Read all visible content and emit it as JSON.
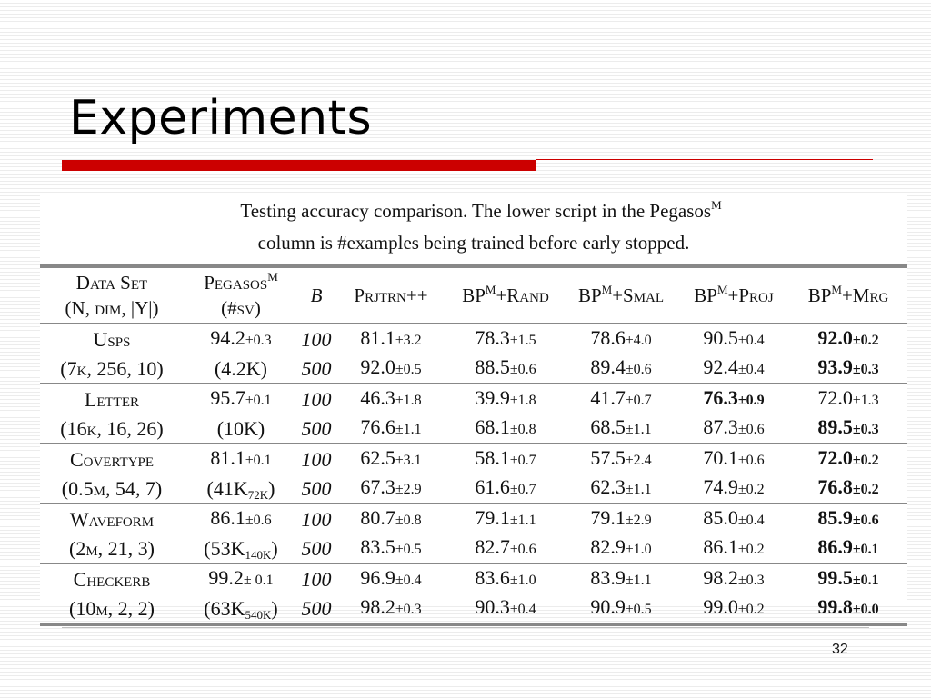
{
  "slide": {
    "title": "Experiments",
    "page_number": "32"
  },
  "caption": {
    "line1_pre": "Testing accuracy comparison. The lower script in the Pegasos",
    "line1_sup": "M",
    "line2": "column is #examples being trained before early stopped."
  },
  "headers": {
    "dataset_line1": "Data Set",
    "dataset_line2": "(N, dim, |Y|)",
    "pegasos_line1": "Pegasos",
    "pegasos_sup": "M",
    "pegasos_line2": "(#sv)",
    "b": "B",
    "prjtrn": "Prjtrn++",
    "bp_rand_pre": "BP",
    "bp_rand_sup": "M",
    "bp_rand_post": "+Rand",
    "bp_smal_pre": "BP",
    "bp_smal_sup": "M",
    "bp_smal_post": "+Smal",
    "bp_proj_pre": "BP",
    "bp_proj_sup": "M",
    "bp_proj_post": "+Proj",
    "bp_mrg_pre": "BP",
    "bp_mrg_sup": "M",
    "bp_mrg_post": "+Mrg"
  },
  "groups": [
    {
      "name": "Usps",
      "meta_pre": "(7",
      "meta_k": "k",
      "meta_post": ", 256, 10)",
      "pegasos_acc": "94.2",
      "pegasos_pm": "±0.3",
      "pegasos_sv": "(4.2K)",
      "pegasos_sv_sub": "",
      "pegasos_sv_close": "",
      "rows": [
        {
          "b": "100",
          "prjtrn": "81.1",
          "prjtrn_pm": "±3.2",
          "rand": "78.3",
          "rand_pm": "±1.5",
          "smal": "78.6",
          "smal_pm": "±4.0",
          "proj": "90.5",
          "proj_pm": "±0.4",
          "mrg": "92.0",
          "mrg_pm": "±0.2"
        },
        {
          "b": "500",
          "prjtrn": "92.0",
          "prjtrn_pm": "±0.5",
          "rand": "88.5",
          "rand_pm": "±0.6",
          "smal": "89.4",
          "smal_pm": "±0.6",
          "proj": "92.4",
          "proj_pm": "±0.4",
          "mrg": "93.9",
          "mrg_pm": "±0.3"
        }
      ]
    },
    {
      "name": "Letter",
      "meta_pre": "(16",
      "meta_k": "k",
      "meta_post": ", 16, 26)",
      "pegasos_acc": "95.7",
      "pegasos_pm": "±0.1",
      "pegasos_sv": "(10K)",
      "pegasos_sv_sub": "",
      "pegasos_sv_close": "",
      "rows": [
        {
          "b": "100",
          "prjtrn": "46.3",
          "prjtrn_pm": "±1.8",
          "rand": "39.9",
          "rand_pm": "±1.8",
          "smal": "41.7",
          "smal_pm": "±0.7",
          "proj": "76.3",
          "proj_pm": "±0.9",
          "mrg": "72.0",
          "mrg_pm": "±1.3"
        },
        {
          "b": "500",
          "prjtrn": "76.6",
          "prjtrn_pm": "±1.1",
          "rand": "68.1",
          "rand_pm": "±0.8",
          "smal": "68.5",
          "smal_pm": "±1.1",
          "proj": "87.3",
          "proj_pm": "±0.6",
          "mrg": "89.5",
          "mrg_pm": "±0.3"
        }
      ]
    },
    {
      "name": "Covertype",
      "meta_pre": "(0.5",
      "meta_k": "m",
      "meta_post": ", 54, 7)",
      "pegasos_acc": "81.1",
      "pegasos_pm": "±0.1",
      "pegasos_sv": "(41K",
      "pegasos_sv_sub": "72K",
      "pegasos_sv_close": ")",
      "rows": [
        {
          "b": "100",
          "prjtrn": "62.5",
          "prjtrn_pm": "±3.1",
          "rand": "58.1",
          "rand_pm": "±0.7",
          "smal": "57.5",
          "smal_pm": "±2.4",
          "proj": "70.1",
          "proj_pm": "±0.6",
          "mrg": "72.0",
          "mrg_pm": "±0.2"
        },
        {
          "b": "500",
          "prjtrn": "67.3",
          "prjtrn_pm": "±2.9",
          "rand": "61.6",
          "rand_pm": "±0.7",
          "smal": "62.3",
          "smal_pm": "±1.1",
          "proj": "74.9",
          "proj_pm": "±0.2",
          "mrg": "76.8",
          "mrg_pm": "±0.2"
        }
      ]
    },
    {
      "name": "Waveform",
      "meta_pre": "(2",
      "meta_k": "m",
      "meta_post": ", 21, 3)",
      "pegasos_acc": "86.1",
      "pegasos_pm": "±0.6",
      "pegasos_sv": "(53K",
      "pegasos_sv_sub": "140K",
      "pegasos_sv_close": ")",
      "rows": [
        {
          "b": "100",
          "prjtrn": "80.7",
          "prjtrn_pm": "±0.8",
          "rand": "79.1",
          "rand_pm": "±1.1",
          "smal": "79.1",
          "smal_pm": "±2.9",
          "proj": "85.0",
          "proj_pm": "±0.4",
          "mrg": "85.9",
          "mrg_pm": "±0.6"
        },
        {
          "b": "500",
          "prjtrn": "83.5",
          "prjtrn_pm": "±0.5",
          "rand": "82.7",
          "rand_pm": "±0.6",
          "smal": "82.9",
          "smal_pm": "±1.0",
          "proj": "86.1",
          "proj_pm": "±0.2",
          "mrg": "86.9",
          "mrg_pm": "±0.1"
        }
      ]
    },
    {
      "name": "Checkerb",
      "meta_pre": "(10",
      "meta_k": "m",
      "meta_post": ", 2, 2)",
      "pegasos_acc": "99.2",
      "pegasos_pm": "± 0.1",
      "pegasos_sv": "(63K",
      "pegasos_sv_sub": "540K",
      "pegasos_sv_close": ")",
      "rows": [
        {
          "b": "100",
          "prjtrn": "96.9",
          "prjtrn_pm": "±0.4",
          "rand": "83.6",
          "rand_pm": "±1.0",
          "smal": "83.9",
          "smal_pm": "±1.1",
          "proj": "98.2",
          "proj_pm": "±0.3",
          "mrg": "99.5",
          "mrg_pm": "±0.1"
        },
        {
          "b": "500",
          "prjtrn": "98.2",
          "prjtrn_pm": "±0.3",
          "rand": "90.3",
          "rand_pm": "±0.4",
          "smal": "90.9",
          "smal_pm": "±0.5",
          "proj": "99.0",
          "proj_pm": "±0.2",
          "mrg": "99.8",
          "mrg_pm": "±0.0"
        }
      ]
    }
  ]
}
